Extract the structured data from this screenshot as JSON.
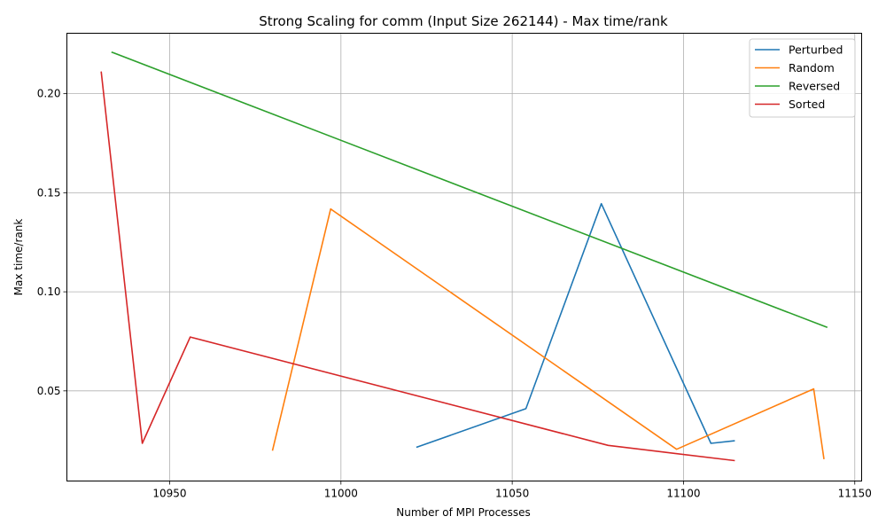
{
  "chart_data": {
    "type": "line",
    "title": "Strong Scaling for comm (Input Size 262144) - Max time/rank",
    "xlabel": "Number of MPI Processes",
    "ylabel": "Max time/rank",
    "xlim": [
      10920,
      11152
    ],
    "ylim": [
      0.0045,
      0.2305
    ],
    "xticks": [
      10950,
      11000,
      11050,
      11100,
      11150
    ],
    "xtick_labels": [
      "10950",
      "11000",
      "11050",
      "11100",
      "11150"
    ],
    "yticks": [
      0.05,
      0.1,
      0.15,
      0.2
    ],
    "ytick_labels": [
      "0.05",
      "0.10",
      "0.15",
      "0.20"
    ],
    "grid": true,
    "legend_position": "top-right",
    "series": [
      {
        "name": "Perturbed",
        "color": "#1f77b4",
        "x": [
          11022,
          11054,
          11076,
          11108,
          11115
        ],
        "y": [
          0.0215,
          0.041,
          0.1445,
          0.0235,
          0.0248
        ]
      },
      {
        "name": "Random",
        "color": "#ff7f0e",
        "x": [
          10980,
          10997,
          11098,
          11138,
          11141
        ],
        "y": [
          0.0198,
          0.1418,
          0.0205,
          0.051,
          0.0155
        ]
      },
      {
        "name": "Reversed",
        "color": "#2ca02c",
        "x": [
          10933,
          11142
        ],
        "y": [
          0.221,
          0.082
        ]
      },
      {
        "name": "Sorted",
        "color": "#d62728",
        "x": [
          10930,
          10942,
          10956,
          11078,
          11115
        ],
        "y": [
          0.2112,
          0.0235,
          0.0772,
          0.0225,
          0.0148
        ]
      }
    ]
  }
}
